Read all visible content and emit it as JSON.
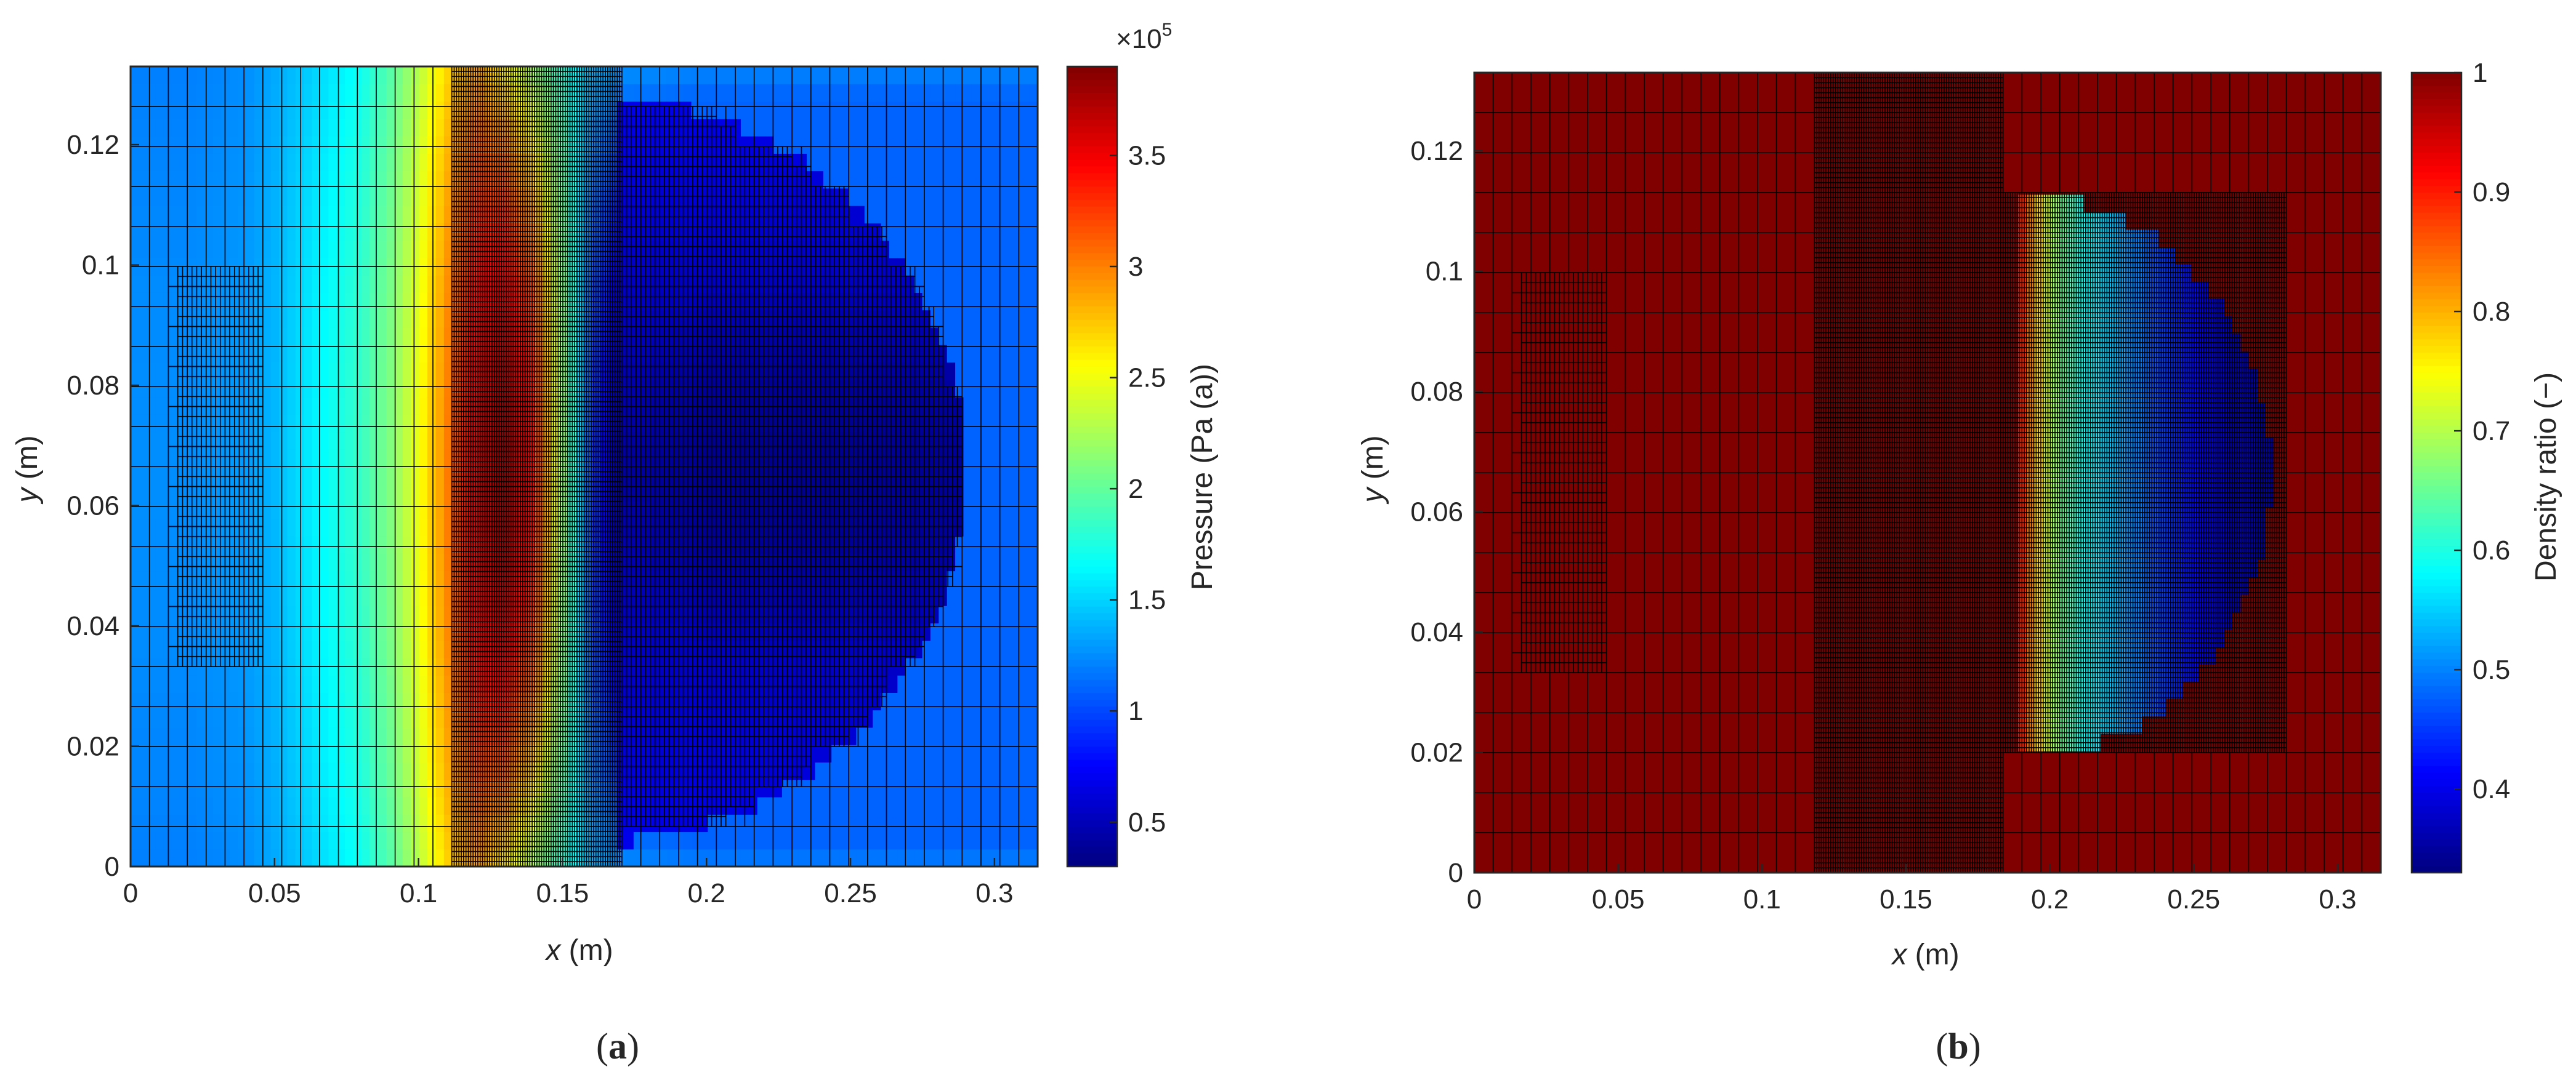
{
  "chart_data": [
    {
      "type": "heatmap",
      "panel_label": "a",
      "xlabel_var": "x",
      "xlabel_unit": " (m)",
      "ylabel_var": "y",
      "ylabel_unit": " (m)",
      "xlim": [
        0,
        0.315
      ],
      "ylim": [
        0,
        0.133
      ],
      "x_ticks": [
        0,
        0.05,
        0.1,
        0.15,
        0.2,
        0.25,
        0.3
      ],
      "x_tick_labels": [
        "0",
        "0.05",
        "0.1",
        "0.15",
        "0.2",
        "0.25",
        "0.3"
      ],
      "y_ticks": [
        0,
        0.02,
        0.04,
        0.06,
        0.08,
        0.1,
        0.12
      ],
      "y_tick_labels": [
        "0",
        "0.02",
        "0.04",
        "0.06",
        "0.08",
        "0.1",
        "0.12"
      ],
      "colorbar": {
        "label": "Pressure (Pa (a))",
        "multiplier": "×10",
        "exponent": "5",
        "range": [
          0.3,
          3.9
        ],
        "ticks": [
          0.5,
          1,
          1.5,
          2,
          2.5,
          3,
          3.5
        ],
        "tick_labels": [
          "0.5",
          "1",
          "1.5",
          "2",
          "2.5",
          "3",
          "3.5"
        ],
        "colormap": "jet"
      },
      "pressure_profile_x": {
        "x": [
          0,
          0.02,
          0.04,
          0.05,
          0.06,
          0.08,
          0.09,
          0.1,
          0.11,
          0.12,
          0.13,
          0.14,
          0.15,
          0.16,
          0.17,
          0.2,
          0.25,
          0.3,
          0.315
        ],
        "value_centre_1e5": [
          1.25,
          1.25,
          1.3,
          1.4,
          1.55,
          1.85,
          2.1,
          2.5,
          3.0,
          3.6,
          3.8,
          3.4,
          2.2,
          1.0,
          0.45,
          0.35,
          0.35,
          0.4,
          0.4
        ],
        "value_edge_1e5": [
          1.2,
          1.2,
          1.25,
          1.35,
          1.45,
          1.7,
          1.95,
          2.3,
          2.7,
          2.9,
          2.6,
          2.2,
          1.8,
          1.4,
          1.25,
          1.2,
          1.2,
          1.2,
          1.2
        ]
      },
      "mesh": "adaptive quadtree"
    },
    {
      "type": "heatmap",
      "panel_label": "b",
      "xlabel_var": "x",
      "xlabel_unit": " (m)",
      "ylabel_var": "y",
      "ylabel_unit": " (m)",
      "xlim": [
        0,
        0.315
      ],
      "ylim": [
        0,
        0.133
      ],
      "x_ticks": [
        0,
        0.05,
        0.1,
        0.15,
        0.2,
        0.25,
        0.3
      ],
      "x_tick_labels": [
        "0",
        "0.05",
        "0.1",
        "0.15",
        "0.2",
        "0.25",
        "0.3"
      ],
      "y_ticks": [
        0,
        0.02,
        0.04,
        0.06,
        0.08,
        0.1,
        0.12
      ],
      "y_tick_labels": [
        "0",
        "0.02",
        "0.04",
        "0.06",
        "0.08",
        "0.1",
        "0.12"
      ],
      "colorbar": {
        "label": "Density ratio (−)",
        "range": [
          0.33,
          1
        ],
        "ticks": [
          0.4,
          0.5,
          0.6,
          0.7,
          0.8,
          0.9,
          1
        ],
        "tick_labels": [
          "0.4",
          "0.5",
          "0.6",
          "0.7",
          "0.8",
          "0.9",
          "1"
        ],
        "colormap": "jet"
      },
      "bubble": {
        "x_left": 0.19,
        "x_tip": 0.277,
        "y_center": 0.066,
        "half_height": 0.047,
        "profile_x": [
          0.19,
          0.195,
          0.2,
          0.21,
          0.22,
          0.23,
          0.24,
          0.25,
          0.26,
          0.277
        ],
        "profile_value": [
          0.9,
          0.8,
          0.7,
          0.6,
          0.55,
          0.5,
          0.45,
          0.42,
          0.38,
          0.36
        ]
      },
      "background_value": 1,
      "mesh": "adaptive quadtree"
    }
  ]
}
